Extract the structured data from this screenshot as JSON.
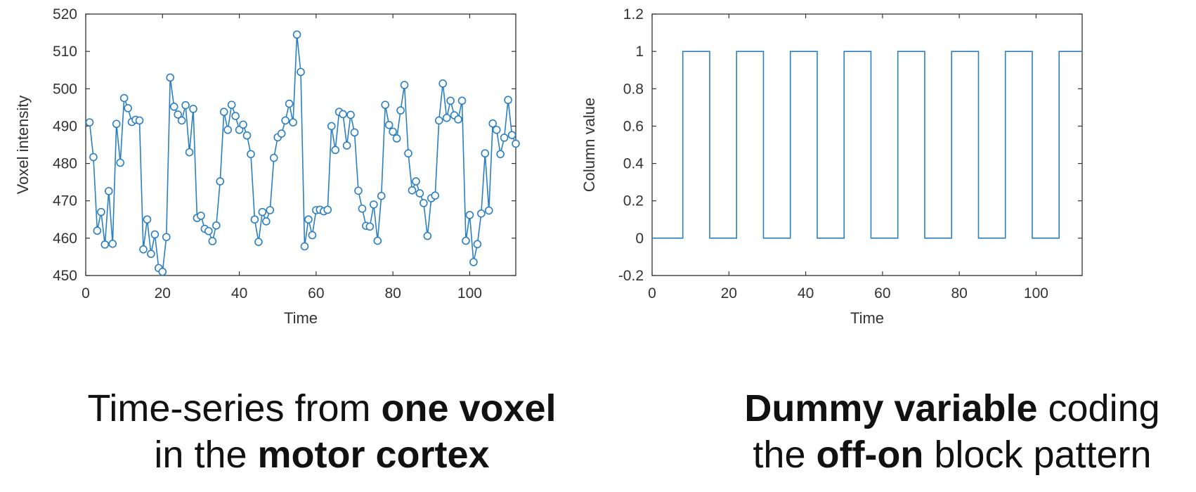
{
  "chart_data": [
    {
      "type": "line",
      "xlabel": "Time",
      "ylabel": "Voxel intensity",
      "xlim": [
        0,
        112
      ],
      "ylim": [
        450,
        520
      ],
      "xticks": [
        "0",
        "20",
        "40",
        "60",
        "80",
        "100"
      ],
      "yticks": [
        "450",
        "460",
        "470",
        "480",
        "490",
        "500",
        "510",
        "520"
      ],
      "marker": "circle",
      "color": "#2a7fc4",
      "x": [
        1,
        2,
        3,
        4,
        5,
        6,
        7,
        8,
        9,
        10,
        11,
        12,
        13,
        14,
        15,
        16,
        17,
        18,
        19,
        20,
        21,
        22,
        23,
        24,
        25,
        26,
        27,
        28,
        29,
        30,
        31,
        32,
        33,
        34,
        35,
        36,
        37,
        38,
        39,
        40,
        41,
        42,
        43,
        44,
        45,
        46,
        47,
        48,
        49,
        50,
        51,
        52,
        53,
        54,
        55,
        56,
        57,
        58,
        59,
        60,
        61,
        62,
        63,
        64,
        65,
        66,
        67,
        68,
        69,
        70,
        71,
        72,
        73,
        74,
        75,
        76,
        77,
        78,
        79,
        80,
        81,
        82,
        83,
        84,
        85,
        86,
        87,
        88,
        89,
        90,
        91,
        92,
        93,
        94,
        95,
        96,
        97,
        98,
        99,
        100,
        101,
        102,
        103,
        104,
        105,
        106,
        107,
        108,
        109,
        110,
        111,
        112
      ],
      "values": [
        491,
        481.7,
        462,
        467,
        458.3,
        472.6,
        458.5,
        490.6,
        480.2,
        497.5,
        494.8,
        491.1,
        491.7,
        491.5,
        457,
        465,
        455.8,
        461,
        452,
        451,
        460.3,
        503,
        495.2,
        493.1,
        491.5,
        495.6,
        483,
        494.6,
        465.4,
        466,
        462.5,
        461.9,
        459.2,
        463.4,
        475.2,
        493.8,
        489,
        495.7,
        492.7,
        489,
        490.4,
        487.5,
        482.5,
        465,
        459,
        467,
        464.5,
        467.5,
        481.5,
        487,
        488,
        491.5,
        496,
        491,
        514.5,
        504.5,
        457.8,
        465,
        460.8,
        467.5,
        467.6,
        467.2,
        467.6,
        490,
        483.6,
        493.8,
        493.2,
        484.8,
        493,
        488.3,
        472.7,
        467.9,
        463.3,
        463.1,
        469,
        459.3,
        471.3,
        495.7,
        490.3,
        488.5,
        486.7,
        494.2,
        501,
        482.7,
        472.8,
        475.2,
        472,
        469.4,
        460.6,
        470.7,
        471.4,
        491.5,
        501.4,
        492.2,
        496.8,
        492.9,
        491.8,
        496.8,
        459.3,
        466.2,
        453.6,
        458.4,
        466.6,
        482.7,
        467.4,
        490.7,
        489,
        482.5,
        486.9,
        497,
        487.6,
        485.3
      ]
    },
    {
      "type": "line",
      "xlabel": "Time",
      "ylabel": "Column value",
      "xlim": [
        0,
        112
      ],
      "ylim": [
        -0.2,
        1.2
      ],
      "xticks": [
        "0",
        "20",
        "40",
        "60",
        "80",
        "100"
      ],
      "yticks": [
        "-0.2",
        "0",
        "0.2",
        "0.4",
        "0.6",
        "0.8",
        "1",
        "1.2"
      ],
      "step": true,
      "color": "#2a7fc4",
      "x": [
        0,
        8,
        8,
        15,
        15,
        22,
        22,
        29,
        29,
        36,
        36,
        43,
        43,
        50,
        50,
        57,
        57,
        64,
        64,
        71,
        71,
        78,
        78,
        85,
        85,
        92,
        92,
        99,
        99,
        106,
        106,
        112
      ],
      "values": [
        0,
        0,
        1,
        1,
        0,
        0,
        1,
        1,
        0,
        0,
        1,
        1,
        0,
        0,
        1,
        1,
        0,
        0,
        1,
        1,
        0,
        0,
        1,
        1,
        0,
        0,
        1,
        1,
        0,
        0,
        1,
        1
      ]
    }
  ],
  "captions": {
    "left": {
      "line1_a": "Time-series from ",
      "line1_b": "one voxel",
      "line2_a": "in the ",
      "line2_b": "motor cortex"
    },
    "right": {
      "line1_a": "Dummy variable",
      "line1_b": " coding",
      "line2_a": "the ",
      "line2_b": "off-on",
      "line2_c": " block pattern"
    }
  }
}
